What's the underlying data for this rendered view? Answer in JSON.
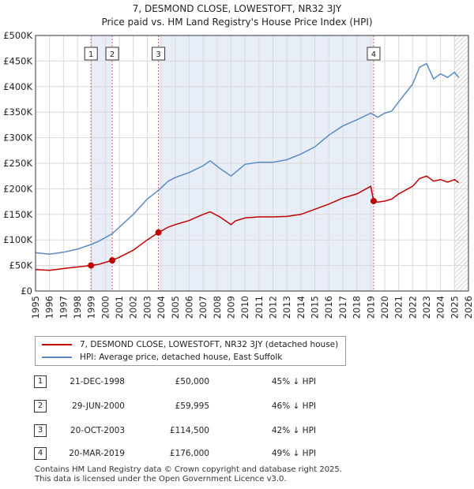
{
  "title_line1": "7, DESMOND CLOSE, LOWESTOFT, NR32 3JY",
  "title_line2": "Price paid vs. HM Land Registry's House Price Index (HPI)",
  "colors": {
    "property": "#c00000",
    "hpi": "#5a8ac6",
    "shade": "#e8eef8",
    "vline": "#dd6666"
  },
  "chart_data": {
    "type": "line",
    "ylim": [
      0,
      500000
    ],
    "xlim": [
      1995,
      2026
    ],
    "y_ticks": [
      {
        "value": 0,
        "label": "£0"
      },
      {
        "value": 50000,
        "label": "£50K"
      },
      {
        "value": 100000,
        "label": "£100K"
      },
      {
        "value": 150000,
        "label": "£150K"
      },
      {
        "value": 200000,
        "label": "£200K"
      },
      {
        "value": 250000,
        "label": "£250K"
      },
      {
        "value": 300000,
        "label": "£300K"
      },
      {
        "value": 350000,
        "label": "£350K"
      },
      {
        "value": 400000,
        "label": "£400K"
      },
      {
        "value": 450000,
        "label": "£450K"
      },
      {
        "value": 500000,
        "label": "£500K"
      }
    ],
    "x_ticks": [
      1995,
      1996,
      1997,
      1998,
      1999,
      2000,
      2001,
      2002,
      2003,
      2004,
      2005,
      2006,
      2007,
      2008,
      2009,
      2010,
      2011,
      2012,
      2013,
      2014,
      2015,
      2016,
      2017,
      2018,
      2019,
      2020,
      2021,
      2022,
      2023,
      2024,
      2025,
      2026
    ],
    "series": [
      {
        "name": "7, DESMOND CLOSE, LOWESTOFT, NR32 3JY (detached house)",
        "color": "#c00000",
        "x": [
          1995.0,
          1996.0,
          1997.0,
          1998.0,
          1998.97,
          1999.5,
          2000.49,
          2001.0,
          2002.0,
          2003.0,
          2003.8,
          2004.5,
          2005.0,
          2006.0,
          2007.0,
          2007.5,
          2008.2,
          2009.0,
          2009.3,
          2010.0,
          2011.0,
          2012.0,
          2013.0,
          2014.0,
          2015.0,
          2016.0,
          2017.0,
          2018.0,
          2019.0,
          2019.21,
          2019.5,
          2020.0,
          2020.5,
          2021.0,
          2022.0,
          2022.5,
          2023.0,
          2023.5,
          2024.0,
          2024.5,
          2025.0,
          2025.3
        ],
        "y": [
          42000,
          40500,
          44000,
          47000,
          50000,
          52000,
          59995,
          66000,
          80000,
          100000,
          114500,
          125000,
          130000,
          138000,
          150000,
          155000,
          145000,
          130000,
          137000,
          143000,
          145000,
          145000,
          146000,
          150000,
          160000,
          170000,
          182000,
          190000,
          205000,
          176000,
          174000,
          176000,
          180000,
          190000,
          205000,
          220000,
          225000,
          215000,
          218000,
          213000,
          218000,
          212000
        ]
      },
      {
        "name": "HPI: Average price, detached house, East Suffolk",
        "color": "#5a8ac6",
        "x": [
          1995.0,
          1996.0,
          1997.0,
          1998.0,
          1998.97,
          1999.5,
          2000.49,
          2001.0,
          2002.0,
          2003.0,
          2003.8,
          2004.5,
          2005.0,
          2006.0,
          2007.0,
          2007.5,
          2008.2,
          2009.0,
          2009.3,
          2010.0,
          2011.0,
          2012.0,
          2013.0,
          2014.0,
          2015.0,
          2016.0,
          2017.0,
          2018.0,
          2019.0,
          2019.21,
          2019.5,
          2020.0,
          2020.5,
          2021.0,
          2022.0,
          2022.5,
          2023.0,
          2023.5,
          2024.0,
          2024.5,
          2025.0,
          2025.3
        ],
        "y": [
          75000,
          72000,
          76000,
          82000,
          91000,
          97000,
          112000,
          125000,
          150000,
          180000,
          197000,
          215000,
          222000,
          232000,
          245000,
          255000,
          240000,
          225000,
          232000,
          248000,
          252000,
          252000,
          257000,
          268000,
          282000,
          305000,
          323000,
          335000,
          348000,
          345000,
          340000,
          348000,
          352000,
          370000,
          405000,
          438000,
          445000,
          415000,
          425000,
          418000,
          428000,
          418000
        ]
      }
    ],
    "sales": [
      {
        "num": "1",
        "x": 1998.97,
        "y": 50000
      },
      {
        "num": "2",
        "x": 2000.49,
        "y": 59995
      },
      {
        "num": "3",
        "x": 2003.8,
        "y": 114500
      },
      {
        "num": "4",
        "x": 2019.21,
        "y": 176000
      }
    ],
    "shaded_ranges": [
      [
        1998.97,
        2000.49
      ],
      [
        2003.8,
        2019.21
      ]
    ],
    "hatch_from": 2025.0
  },
  "legend": {
    "property": "7, DESMOND CLOSE, LOWESTOFT, NR32 3JY (detached house)",
    "hpi": "HPI: Average price, detached house, East Suffolk"
  },
  "transactions": [
    {
      "num": "1",
      "date": "21-DEC-1998",
      "price": "£50,000",
      "hpi": "45% ↓ HPI"
    },
    {
      "num": "2",
      "date": "29-JUN-2000",
      "price": "£59,995",
      "hpi": "46% ↓ HPI"
    },
    {
      "num": "3",
      "date": "20-OCT-2003",
      "price": "£114,500",
      "hpi": "42% ↓ HPI"
    },
    {
      "num": "4",
      "date": "20-MAR-2019",
      "price": "£176,000",
      "hpi": "49% ↓ HPI"
    }
  ],
  "footer_line1": "Contains HM Land Registry data © Crown copyright and database right 2025.",
  "footer_line2": "This data is licensed under the Open Government Licence v3.0."
}
